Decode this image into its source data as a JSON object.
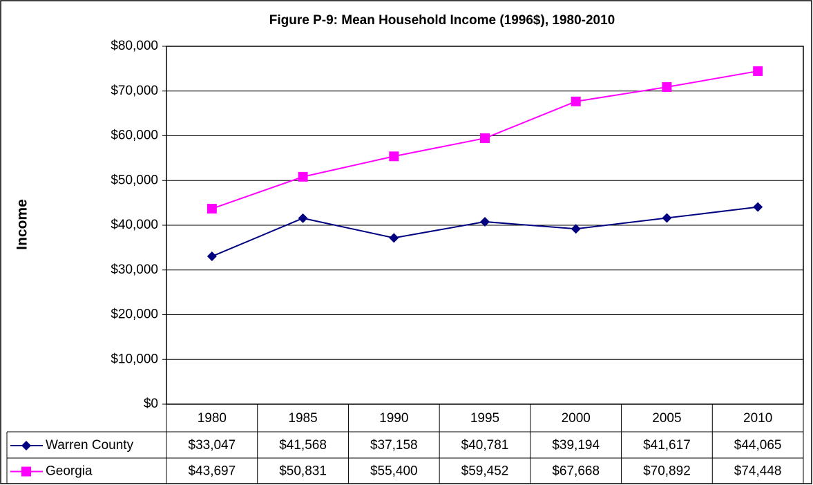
{
  "chart_data": {
    "type": "line",
    "title": "Figure P-9: Mean Household Income (1996$), 1980-2010",
    "y_label": "Income",
    "categories": [
      "1980",
      "1985",
      "1990",
      "1995",
      "2000",
      "2005",
      "2010"
    ],
    "series": [
      {
        "name": "Warren County",
        "color": "#000080",
        "marker": "diamond",
        "values": [
          33047,
          41568,
          37158,
          40781,
          39194,
          41617,
          44065
        ],
        "value_labels": [
          "$33,047",
          "$41,568",
          "$37,158",
          "$40,781",
          "$39,194",
          "$41,617",
          "$44,065"
        ]
      },
      {
        "name": "Georgia",
        "color": "#ff00ff",
        "marker": "square",
        "values": [
          43697,
          50831,
          55400,
          59452,
          67668,
          70892,
          74448
        ],
        "value_labels": [
          "$43,697",
          "$50,831",
          "$55,400",
          "$59,452",
          "$67,668",
          "$70,892",
          "$74,448"
        ]
      }
    ],
    "ylim": [
      0,
      80000
    ],
    "yticks": [
      {
        "value": 0,
        "label": "$0"
      },
      {
        "value": 10000,
        "label": "$10,000"
      },
      {
        "value": 20000,
        "label": "$20,000"
      },
      {
        "value": 30000,
        "label": "$30,000"
      },
      {
        "value": 40000,
        "label": "$40,000"
      },
      {
        "value": 50000,
        "label": "$50,000"
      },
      {
        "value": 60000,
        "label": "$60,000"
      },
      {
        "value": 70000,
        "label": "$70,000"
      },
      {
        "value": 80000,
        "label": "$80,000"
      }
    ],
    "grid": true
  }
}
